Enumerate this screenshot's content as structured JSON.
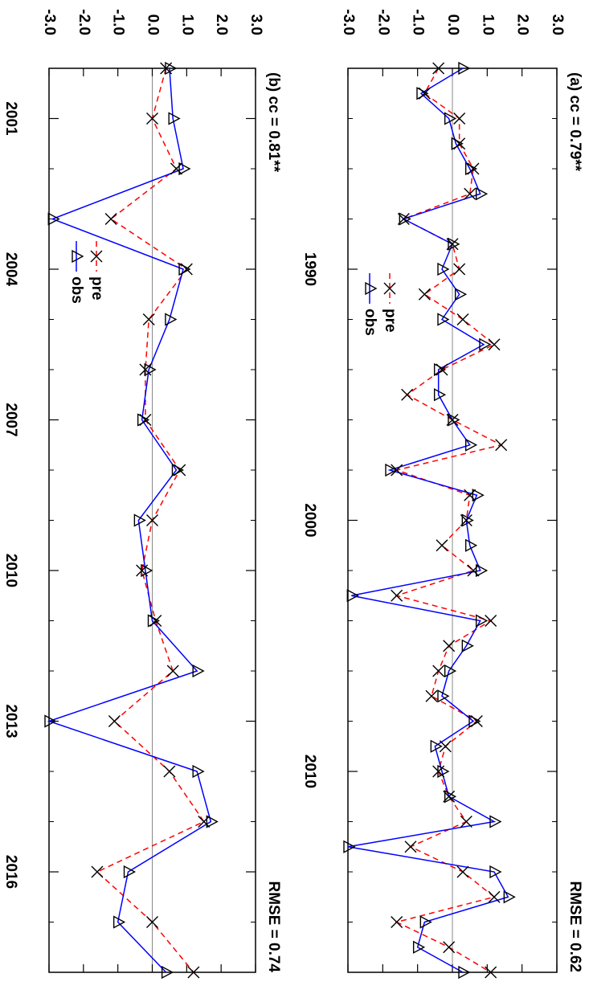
{
  "chart_data": [
    {
      "type": "line",
      "title": "(a) cc = 0.79**",
      "annotation": "RMSE = 0.62",
      "x": [
        1982,
        1983,
        1984,
        1985,
        1986,
        1987,
        1988,
        1989,
        1990,
        1991,
        1992,
        1993,
        1994,
        1995,
        1996,
        1997,
        1998,
        1999,
        2000,
        2001,
        2002,
        2003,
        2004,
        2005,
        2006,
        2007,
        2008,
        2009,
        2010,
        2011,
        2012,
        2013,
        2014,
        2015,
        2016,
        2017,
        2018
      ],
      "series": [
        {
          "name": "pre",
          "color": "#ff0000",
          "values": [
            -0.4,
            -0.8,
            0.2,
            0.2,
            0.6,
            0.5,
            -1.4,
            0.0,
            0.2,
            -0.8,
            0.3,
            1.2,
            -0.3,
            -1.3,
            0.0,
            1.4,
            -1.6,
            0.5,
            0.4,
            -0.3,
            0.6,
            -1.6,
            1.1,
            -0.1,
            -0.4,
            -0.6,
            0.7,
            -0.2,
            -0.4,
            -0.1,
            0.4,
            -1.2,
            0.3,
            1.2,
            -1.6,
            -0.1,
            1.1
          ]
        },
        {
          "name": "obs",
          "color": "#0000ff",
          "values": [
            0.3,
            -0.9,
            -0.1,
            0.1,
            0.5,
            0.8,
            -1.4,
            0.0,
            -0.3,
            0.2,
            -0.3,
            0.9,
            -0.4,
            -0.4,
            0.0,
            0.5,
            -1.8,
            0.7,
            0.4,
            0.5,
            0.8,
            -2.9,
            0.8,
            0.4,
            -0.1,
            -0.3,
            0.6,
            -0.5,
            -0.3,
            -0.1,
            1.2,
            -3.0,
            1.2,
            1.6,
            -0.8,
            -1.0,
            0.3
          ]
        }
      ],
      "xlim": [
        1982,
        2018
      ],
      "xticks": [
        1990,
        2000,
        2010
      ],
      "xminorticks": [
        1984,
        1986,
        1988,
        1992,
        1994,
        1996,
        1998,
        2002,
        2004,
        2006,
        2008,
        2012,
        2014,
        2016
      ],
      "ylim": [
        -3,
        3
      ],
      "yticks": [
        {
          "value": -3,
          "label": "-3.0"
        },
        {
          "value": -2,
          "label": "-2.0"
        },
        {
          "value": -1,
          "label": "-1.0"
        },
        {
          "value": 0,
          "label": "0.0"
        },
        {
          "value": 1,
          "label": "1.0"
        },
        {
          "value": 2,
          "label": "2.0"
        },
        {
          "value": 3,
          "label": "3.0"
        }
      ],
      "reference_line": 0
    },
    {
      "type": "line",
      "title": "(b) cc = 0.81**",
      "annotation": "RMSE = 0.74",
      "x": [
        2000,
        2001,
        2002,
        2003,
        2004,
        2005,
        2006,
        2007,
        2008,
        2009,
        2010,
        2011,
        2012,
        2013,
        2014,
        2015,
        2016,
        2017,
        2018
      ],
      "series": [
        {
          "name": "pre",
          "color": "#ff0000",
          "values": [
            0.4,
            0.0,
            0.7,
            -1.2,
            1.0,
            -0.1,
            -0.2,
            -0.2,
            0.8,
            0.0,
            -0.3,
            0.1,
            0.6,
            -1.1,
            0.5,
            1.5,
            -1.6,
            0.0,
            1.2
          ]
        },
        {
          "name": "obs",
          "color": "#0000ff",
          "values": [
            0.5,
            0.6,
            0.9,
            -2.9,
            0.9,
            0.5,
            -0.1,
            -0.3,
            0.7,
            -0.4,
            -0.2,
            0.0,
            1.3,
            -3.0,
            1.3,
            1.7,
            -0.7,
            -1.0,
            0.4
          ]
        }
      ],
      "xlim": [
        2000,
        2018
      ],
      "xticks": [
        2001,
        2004,
        2007,
        2010,
        2013,
        2016
      ],
      "xminorticks": [
        2002,
        2003,
        2005,
        2006,
        2008,
        2009,
        2011,
        2012,
        2014,
        2015,
        2017
      ],
      "ylim": [
        -3,
        3
      ],
      "yticks": [
        {
          "value": -3,
          "label": "-3.0"
        },
        {
          "value": -2,
          "label": "-2.0"
        },
        {
          "value": -1,
          "label": "-1.0"
        },
        {
          "value": 0,
          "label": "0.0"
        },
        {
          "value": 1,
          "label": "1.0"
        },
        {
          "value": 2,
          "label": "2.0"
        },
        {
          "value": 3,
          "label": "3.0"
        }
      ],
      "reference_line": 0
    }
  ]
}
